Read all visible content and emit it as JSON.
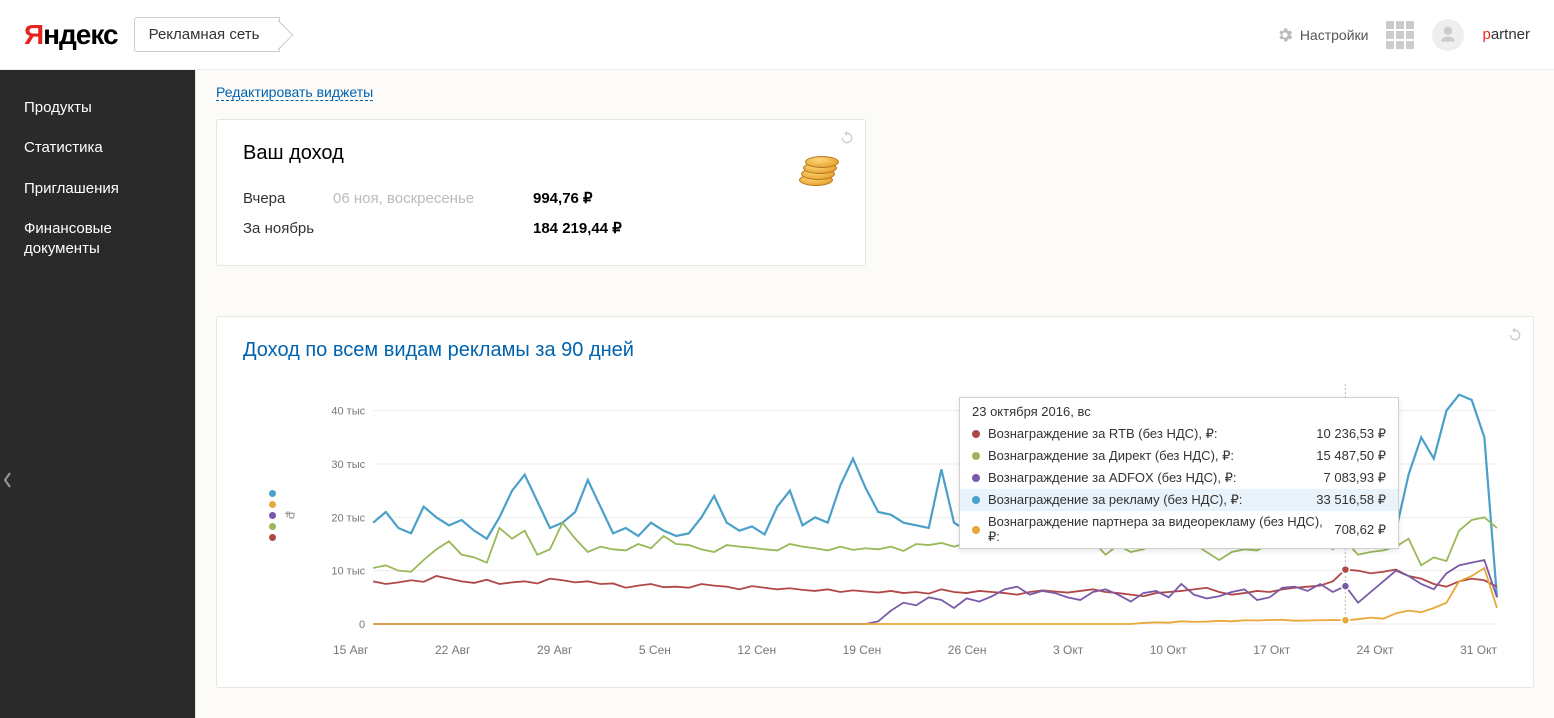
{
  "header": {
    "logo_y": "Я",
    "logo_rest": "ндекс",
    "service": "Рекламная сеть",
    "settings": "Настройки",
    "username_first": "p",
    "username_rest": "artner"
  },
  "sidebar": {
    "items": [
      "Продукты",
      "Статистика",
      "Приглашения",
      "Финансовые документы"
    ]
  },
  "main": {
    "edit_widgets": "Редактировать виджеты",
    "income_card": {
      "title": "Ваш доход",
      "rows": [
        {
          "label": "Вчера",
          "date": "06 ноя, воскресенье",
          "value": "994,76 ₽"
        },
        {
          "label": "За ноябрь",
          "date": "",
          "value": "184 219,44 ₽"
        }
      ]
    },
    "chart_card": {
      "title": "Доход по всем видам рекламы за 90 дней",
      "y_unit": "₽",
      "y_ticks": [
        "0",
        "10 тыс",
        "20 тыс",
        "30 тыс",
        "40 тыс"
      ],
      "ylim": [
        0,
        45000
      ],
      "x_labels": [
        "15 Авг",
        "22 Авг",
        "29 Авг",
        "5 Сен",
        "12 Сен",
        "19 Сен",
        "26 Сен",
        "3 Окт",
        "10 Окт",
        "17 Окт",
        "24 Окт",
        "31 Окт"
      ],
      "grid_color": "#eeeeee",
      "axis_color": "#cccccc",
      "background": "#ffffff",
      "highlight_x": 77,
      "legend_dots": [
        "#4aa0c9",
        "#e8a838",
        "#7a5aa8",
        "#99b857",
        "#b14848"
      ],
      "tooltip": {
        "date": "23 октября 2016, вс",
        "rows": [
          {
            "color": "#b14848",
            "label": "Вознаграждение за RTB (без НДС), ₽:",
            "value": "10 236,53 ₽",
            "hl": false
          },
          {
            "color": "#99b857",
            "label": "Вознаграждение за Директ (без НДС), ₽:",
            "value": "15 487,50 ₽",
            "hl": false
          },
          {
            "color": "#7a5aa8",
            "label": "Вознаграждение за ADFOX (без НДС), ₽:",
            "value": "7 083,93 ₽",
            "hl": false
          },
          {
            "color": "#4aa0c9",
            "label": "Вознаграждение за рекламу (без НДС), ₽:",
            "value": "33 516,58 ₽",
            "hl": true
          },
          {
            "color": "#e8a838",
            "label": "Вознаграждение партнера за видеорекламу (без НДС), ₽:",
            "value": "708,62 ₽",
            "hl": false
          }
        ]
      },
      "series": [
        {
          "name": "reklama",
          "color": "#4aa0c9",
          "width": 2.2,
          "values": [
            19000,
            21000,
            18000,
            17000,
            22000,
            20000,
            18500,
            19500,
            17500,
            16000,
            20000,
            25000,
            28000,
            23000,
            18000,
            19000,
            21000,
            27000,
            22000,
            17000,
            18000,
            16500,
            19000,
            17500,
            16500,
            17000,
            20000,
            24000,
            19000,
            17500,
            18300,
            16800,
            22000,
            25000,
            18500,
            20000,
            19000,
            26000,
            31000,
            25500,
            21000,
            20500,
            19000,
            18500,
            18000,
            29000,
            19000,
            17500,
            21000,
            19500,
            20000,
            21500,
            19000,
            18000,
            17200,
            20000,
            21500,
            22000,
            23000,
            22500,
            19000,
            22000,
            18500,
            25000,
            27500,
            19000,
            17500,
            25000,
            30000,
            27000,
            23000,
            21500,
            20000,
            19000,
            26000,
            24000,
            22500,
            33500,
            15000,
            18000,
            19000,
            17500,
            28000,
            35000,
            31000,
            40000,
            43000,
            42000,
            35000,
            5000
          ]
        },
        {
          "name": "direkt",
          "color": "#99b857",
          "width": 1.8,
          "values": [
            10500,
            11000,
            10000,
            9800,
            12000,
            14000,
            15500,
            13000,
            12500,
            11500,
            18000,
            16000,
            17500,
            13000,
            14000,
            19000,
            16000,
            13500,
            14500,
            14000,
            13800,
            15000,
            14200,
            16500,
            15000,
            14800,
            14000,
            13500,
            14800,
            14500,
            14300,
            14000,
            13800,
            15000,
            14500,
            14200,
            13800,
            14500,
            13900,
            14200,
            14000,
            14500,
            13700,
            15000,
            14800,
            15200,
            14500,
            15200,
            14800,
            15500,
            14900,
            14500,
            14200,
            15000,
            15800,
            15200,
            14700,
            15500,
            13000,
            14800,
            13500,
            14000,
            15500,
            14200,
            14800,
            15000,
            13500,
            12000,
            13500,
            14000,
            13800,
            15000,
            15500,
            14800,
            14500,
            15500,
            14000,
            15500,
            13000,
            13500,
            13800,
            14500,
            16000,
            11000,
            12500,
            11800,
            17500,
            19500,
            20000,
            18000
          ]
        },
        {
          "name": "rtb",
          "color": "#b14848",
          "width": 1.8,
          "values": [
            8000,
            7500,
            7800,
            8200,
            7900,
            9000,
            8500,
            8000,
            7700,
            8300,
            7500,
            7800,
            8000,
            7600,
            8500,
            8200,
            7800,
            8000,
            7500,
            7600,
            6800,
            7200,
            7500,
            6900,
            7000,
            6800,
            7500,
            7200,
            7000,
            6500,
            7100,
            6800,
            6500,
            6700,
            6400,
            6200,
            6500,
            6000,
            6300,
            6100,
            5900,
            6200,
            5800,
            6000,
            5700,
            6500,
            6000,
            5800,
            6200,
            6000,
            5800,
            5500,
            6000,
            6300,
            6100,
            5900,
            6200,
            6500,
            6000,
            5800,
            5500,
            5200,
            5800,
            6000,
            6200,
            6500,
            6800,
            6000,
            5500,
            5800,
            6200,
            6000,
            6500,
            6800,
            7000,
            7200,
            8000,
            10200,
            10000,
            9500,
            9800,
            10200,
            9000,
            8500,
            7500,
            7000,
            8000,
            8500,
            8200,
            7000
          ]
        },
        {
          "name": "adfox",
          "color": "#7a5aa8",
          "width": 1.8,
          "values": [
            0,
            0,
            0,
            0,
            0,
            0,
            0,
            0,
            0,
            0,
            0,
            0,
            0,
            0,
            0,
            0,
            0,
            0,
            0,
            0,
            0,
            0,
            0,
            0,
            0,
            0,
            0,
            0,
            0,
            0,
            0,
            0,
            0,
            0,
            0,
            0,
            0,
            0,
            0,
            0,
            500,
            2500,
            4000,
            3500,
            5000,
            4500,
            3000,
            4800,
            4200,
            5200,
            6500,
            7000,
            5500,
            6200,
            5800,
            5000,
            4500,
            6000,
            6500,
            5500,
            4200,
            5800,
            6200,
            5000,
            7500,
            5500,
            4800,
            5200,
            6000,
            6500,
            4500,
            5000,
            6800,
            7000,
            6200,
            7500,
            6000,
            7100,
            4000,
            6000,
            8000,
            10000,
            9000,
            7500,
            6500,
            9500,
            11000,
            11500,
            12000,
            5000
          ]
        },
        {
          "name": "video",
          "color": "#e8a838",
          "width": 1.8,
          "values": [
            0,
            0,
            0,
            0,
            0,
            0,
            0,
            0,
            0,
            0,
            0,
            0,
            0,
            0,
            0,
            0,
            0,
            0,
            0,
            0,
            0,
            0,
            0,
            0,
            0,
            0,
            0,
            0,
            0,
            0,
            0,
            0,
            0,
            0,
            0,
            0,
            0,
            0,
            0,
            0,
            0,
            0,
            0,
            0,
            0,
            0,
            0,
            0,
            0,
            0,
            0,
            0,
            0,
            0,
            0,
            0,
            0,
            0,
            0,
            0,
            0,
            200,
            300,
            250,
            500,
            400,
            450,
            600,
            500,
            700,
            650,
            750,
            800,
            600,
            650,
            700,
            750,
            710,
            900,
            1200,
            1000,
            2000,
            2500,
            2200,
            3000,
            4000,
            8000,
            9000,
            10500,
            3000
          ]
        }
      ]
    }
  }
}
